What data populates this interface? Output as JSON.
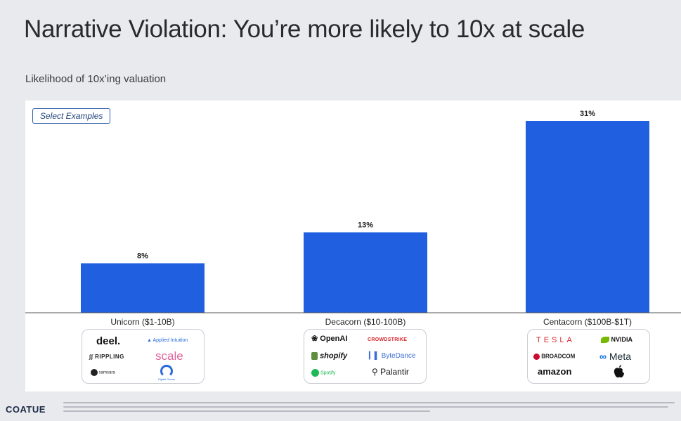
{
  "title": "Narrative Violation: You’re more likely to 10x at scale",
  "subtitle": "Likelihood of 10x’ing valuation",
  "select_label": "Select Examples",
  "footer_brand": "COATUE",
  "colors": {
    "bar": "#1f5fe0",
    "axis": "#555555",
    "pill": "#2f5fae"
  },
  "chart_data": {
    "type": "bar",
    "title": "Likelihood of 10x’ing valuation",
    "categories": [
      "Unicorn ($1-10B)",
      "Decacorn ($10-100B)",
      "Centacorn ($100B-$1T)"
    ],
    "values": [
      8,
      13,
      31
    ],
    "value_labels": [
      "8%",
      "13%",
      "31%"
    ],
    "ylim": [
      0,
      31
    ],
    "grid": false,
    "legend": "none"
  },
  "examples": [
    {
      "logos": [
        "deel.",
        "Applied Intuition",
        "RIPPLING",
        "scale",
        "samsara",
        "Digital Ocean"
      ]
    },
    {
      "logos": [
        "OpenAI",
        "CROWDSTRIKE",
        "shopify",
        "ByteDance",
        "Spotify",
        "Palantir"
      ]
    },
    {
      "logos": [
        "TESLA",
        "NVIDIA",
        "BROADCOM",
        "Meta",
        "amazon",
        "apple"
      ]
    }
  ]
}
